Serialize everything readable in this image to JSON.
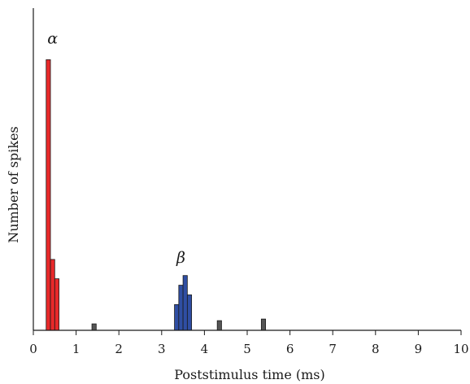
{
  "chart_data": {
    "type": "bar",
    "title": "",
    "xlabel": "Poststimulus time (ms)",
    "ylabel": "Number of spikes",
    "xlim": [
      0,
      10
    ],
    "ylim": [
      0,
      100
    ],
    "xticks": [
      "0",
      "1",
      "2",
      "3",
      "4",
      "5",
      "6",
      "7",
      "8",
      "9",
      "10"
    ],
    "grid": false,
    "legend": "none",
    "bin_width_ms": 0.1,
    "series": [
      {
        "color": "#e8292a",
        "bins": [
          {
            "x": 0.35,
            "value": 84
          },
          {
            "x": 0.45,
            "value": 22
          },
          {
            "x": 0.55,
            "value": 16
          }
        ]
      },
      {
        "color": "#2f4ea3",
        "bins": [
          {
            "x": 3.35,
            "value": 8
          },
          {
            "x": 3.45,
            "value": 14
          },
          {
            "x": 3.55,
            "value": 17
          },
          {
            "x": 3.65,
            "value": 11
          }
        ]
      },
      {
        "color": "#555555",
        "bins": [
          {
            "x": 1.42,
            "value": 2
          },
          {
            "x": 4.35,
            "value": 3
          },
          {
            "x": 5.38,
            "value": 3.5
          }
        ]
      }
    ],
    "annotations": [
      {
        "text": "α",
        "x": 0.45,
        "y": 89
      },
      {
        "text": "β",
        "x": 3.45,
        "y": 21
      }
    ]
  }
}
